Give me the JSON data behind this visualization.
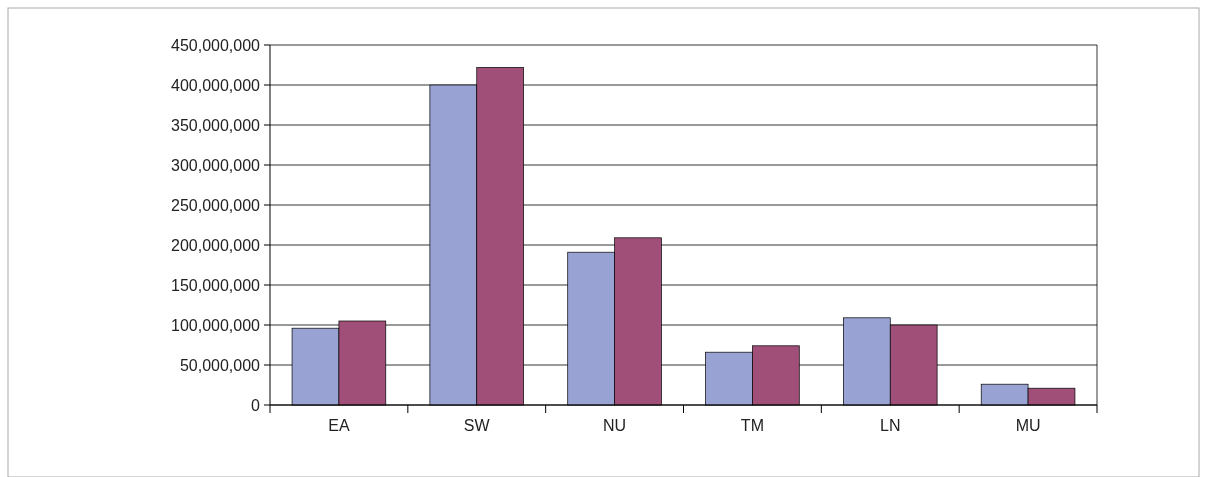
{
  "chart_data": {
    "type": "bar",
    "categories": [
      "EA",
      "SW",
      "NU",
      "TM",
      "LN",
      "MU"
    ],
    "series": [
      {
        "color": "#99a3d3",
        "values": [
          96000000,
          400000000,
          191000000,
          66000000,
          109000000,
          26000000
        ]
      },
      {
        "color": "#a05078",
        "values": [
          105000000,
          422000000,
          209000000,
          74000000,
          100000000,
          21000000
        ]
      }
    ],
    "ylim": [
      0,
      450000000
    ],
    "yticks": [
      {
        "value": 0,
        "label": "0"
      },
      {
        "value": 50000000,
        "label": "50,000,000"
      },
      {
        "value": 100000000,
        "label": "100,000,000"
      },
      {
        "value": 150000000,
        "label": "150,000,000"
      },
      {
        "value": 200000000,
        "label": "200,000,000"
      },
      {
        "value": 250000000,
        "label": "250,000,000"
      },
      {
        "value": 300000000,
        "label": "300,000,000"
      },
      {
        "value": 350000000,
        "label": "350,000,000"
      },
      {
        "value": 400000000,
        "label": "400,000,000"
      },
      {
        "value": 450000000,
        "label": "450,000,000"
      }
    ],
    "grid": "y"
  }
}
